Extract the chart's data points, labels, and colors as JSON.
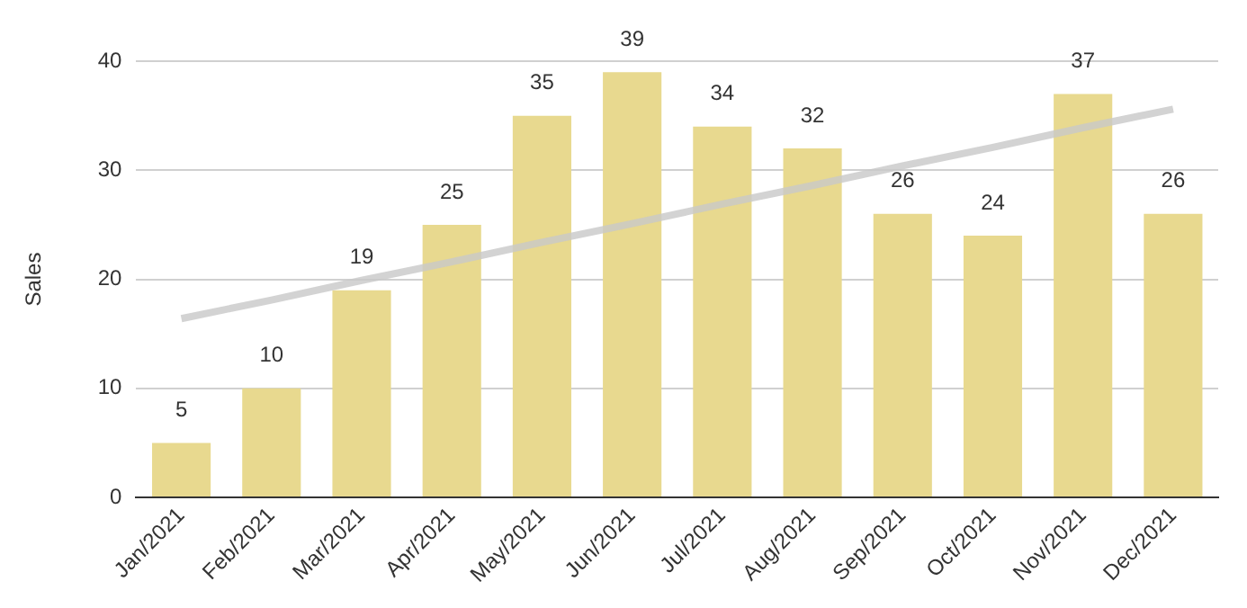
{
  "chart_data": {
    "type": "bar",
    "ylabel": "Sales",
    "categories": [
      "Jan/2021",
      "Feb/2021",
      "Mar/2021",
      "Apr/2021",
      "May/2021",
      "Jun/2021",
      "Jul/2021",
      "Aug/2021",
      "Sep/2021",
      "Oct/2021",
      "Nov/2021",
      "Dec/2021"
    ],
    "series": [
      {
        "color": "#e8d98f",
        "values": [
          5,
          10,
          19,
          25,
          35,
          39,
          34,
          32,
          26,
          24,
          37,
          26
        ],
        "value_labels": [
          "5",
          "10",
          "19",
          "25",
          "35",
          "39",
          "34",
          "32",
          "26",
          "24",
          "37",
          "26"
        ]
      },
      {
        "type": "line",
        "color": "#c8c8c8",
        "values": [
          16.4,
          18.1,
          19.9,
          21.6,
          23.4,
          25.1,
          26.9,
          28.6,
          30.4,
          32.1,
          33.9,
          35.6
        ]
      }
    ],
    "ylim": [
      0,
      40
    ],
    "yticks": [
      0,
      10,
      20,
      30,
      40
    ],
    "grid": "y",
    "legend": false,
    "marker": "none"
  }
}
